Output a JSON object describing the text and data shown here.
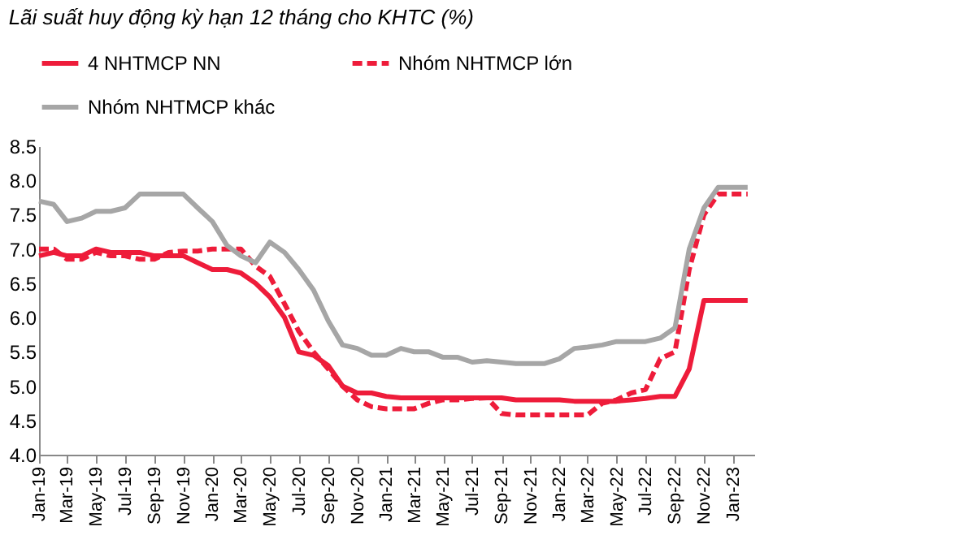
{
  "chart_data": {
    "type": "line",
    "title": "Lãi suất huy động kỳ hạn 12 tháng cho KHTC (%)",
    "x": [
      "2019-01",
      "2019-02",
      "2019-03",
      "2019-04",
      "2019-05",
      "2019-06",
      "2019-07",
      "2019-08",
      "2019-09",
      "2019-10",
      "2019-11",
      "2019-12",
      "2020-01",
      "2020-02",
      "2020-03",
      "2020-04",
      "2020-05",
      "2020-06",
      "2020-07",
      "2020-08",
      "2020-09",
      "2020-10",
      "2020-11",
      "2020-12",
      "2021-01",
      "2021-02",
      "2021-03",
      "2021-04",
      "2021-05",
      "2021-06",
      "2021-07",
      "2021-08",
      "2021-09",
      "2021-10",
      "2021-11",
      "2021-12",
      "2022-01",
      "2022-02",
      "2022-03",
      "2022-04",
      "2022-05",
      "2022-06",
      "2022-07",
      "2022-08",
      "2022-09",
      "2022-10",
      "2022-11",
      "2022-12",
      "2023-01",
      "2023-02"
    ],
    "series": [
      {
        "name": "4 NHTMCP NN",
        "color": "#ee1c3a",
        "line_style": "solid",
        "values": [
          6.9,
          6.95,
          6.9,
          6.9,
          7.0,
          6.95,
          6.95,
          6.95,
          6.9,
          6.9,
          6.9,
          6.8,
          6.7,
          6.7,
          6.65,
          6.5,
          6.3,
          6.0,
          5.5,
          5.45,
          5.3,
          5.0,
          4.9,
          4.9,
          4.85,
          4.83,
          4.83,
          4.83,
          4.83,
          4.83,
          4.83,
          4.83,
          4.83,
          4.8,
          4.8,
          4.8,
          4.8,
          4.78,
          4.78,
          4.78,
          4.78,
          4.8,
          4.82,
          4.85,
          4.85,
          5.25,
          6.25,
          6.25,
          6.25,
          6.25
        ]
      },
      {
        "name": "Nhóm NHTMCP lớn",
        "color": "#ee1c3a",
        "line_style": "dashed",
        "values": [
          7.0,
          7.0,
          6.85,
          6.85,
          6.95,
          6.9,
          6.9,
          6.85,
          6.85,
          6.95,
          6.97,
          6.97,
          7.0,
          7.0,
          7.0,
          6.75,
          6.6,
          6.2,
          5.8,
          5.5,
          5.25,
          5.0,
          4.8,
          4.7,
          4.67,
          4.67,
          4.67,
          4.75,
          4.8,
          4.8,
          4.82,
          4.83,
          4.6,
          4.58,
          4.58,
          4.58,
          4.58,
          4.58,
          4.58,
          4.75,
          4.8,
          4.9,
          4.95,
          5.4,
          5.5,
          6.7,
          7.5,
          7.8,
          7.8,
          7.8
        ]
      },
      {
        "name": "Nhóm NHTMCP khác",
        "color": "#a6a6a6",
        "line_style": "solid",
        "values": [
          7.7,
          7.65,
          7.4,
          7.45,
          7.55,
          7.55,
          7.6,
          7.8,
          7.8,
          7.8,
          7.8,
          7.6,
          7.4,
          7.05,
          6.9,
          6.8,
          7.1,
          6.95,
          6.7,
          6.4,
          5.95,
          5.6,
          5.55,
          5.45,
          5.45,
          5.55,
          5.5,
          5.5,
          5.42,
          5.42,
          5.35,
          5.37,
          5.35,
          5.33,
          5.33,
          5.33,
          5.4,
          5.55,
          5.57,
          5.6,
          5.65,
          5.65,
          5.65,
          5.7,
          5.85,
          7.0,
          7.6,
          7.9,
          7.9,
          7.9
        ]
      }
    ],
    "xlim": [
      "2019-01-01",
      "2023-02-15"
    ],
    "xticks": [
      {
        "value": "2019-01",
        "label": "Jan-19"
      },
      {
        "value": "2019-03",
        "label": "Mar-19"
      },
      {
        "value": "2019-05",
        "label": "May-19"
      },
      {
        "value": "2019-07",
        "label": "Jul-19"
      },
      {
        "value": "2019-09",
        "label": "Sep-19"
      },
      {
        "value": "2019-11",
        "label": "Nov-19"
      },
      {
        "value": "2020-01",
        "label": "Jan-20"
      },
      {
        "value": "2020-03",
        "label": "Mar-20"
      },
      {
        "value": "2020-05",
        "label": "May-20"
      },
      {
        "value": "2020-07",
        "label": "Jul-20"
      },
      {
        "value": "2020-09",
        "label": "Sep-20"
      },
      {
        "value": "2020-11",
        "label": "Nov-20"
      },
      {
        "value": "2021-01",
        "label": "Jan-21"
      },
      {
        "value": "2021-03",
        "label": "Mar-21"
      },
      {
        "value": "2021-05",
        "label": "May-21"
      },
      {
        "value": "2021-07",
        "label": "Jul-21"
      },
      {
        "value": "2021-09",
        "label": "Sep-21"
      },
      {
        "value": "2021-11",
        "label": "Nov-21"
      },
      {
        "value": "2022-01",
        "label": "Jan-22"
      },
      {
        "value": "2022-03",
        "label": "Mar-22"
      },
      {
        "value": "2022-05",
        "label": "May-22"
      },
      {
        "value": "2022-07",
        "label": "Jul-22"
      },
      {
        "value": "2022-09",
        "label": "Sep-22"
      },
      {
        "value": "2022-11",
        "label": "Nov-22"
      },
      {
        "value": "2023-01",
        "label": "Jan-23"
      }
    ],
    "ylim": [
      4.0,
      8.5
    ],
    "yticks": [
      {
        "value": 4,
        "label": "4.0"
      },
      {
        "value": 4.5,
        "label": "4.5"
      },
      {
        "value": 5,
        "label": "5.0"
      },
      {
        "value": 5.5,
        "label": "5.5"
      },
      {
        "value": 6,
        "label": "6.0"
      },
      {
        "value": 6.5,
        "label": "6.5"
      },
      {
        "value": 7,
        "label": "7.0"
      },
      {
        "value": 7.5,
        "label": "7.5"
      },
      {
        "value": 8,
        "label": "8.0"
      },
      {
        "value": 8.5,
        "label": "8.5"
      }
    ],
    "grid": false,
    "legend": "top",
    "marker": "none"
  }
}
